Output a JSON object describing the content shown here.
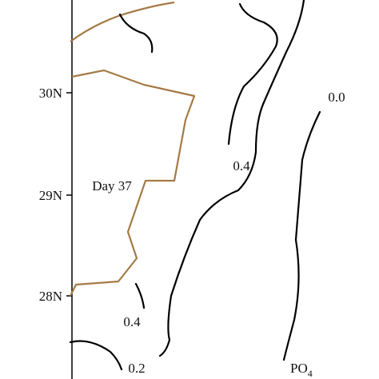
{
  "y_axis": {
    "labels": [
      "30N",
      "29N",
      "28N"
    ]
  },
  "contour_labels": [
    "0.0",
    "0.4",
    "0.4",
    "0.2"
  ],
  "annotation": "Day 37",
  "variable": {
    "base": "PO",
    "subscript": "4"
  }
}
